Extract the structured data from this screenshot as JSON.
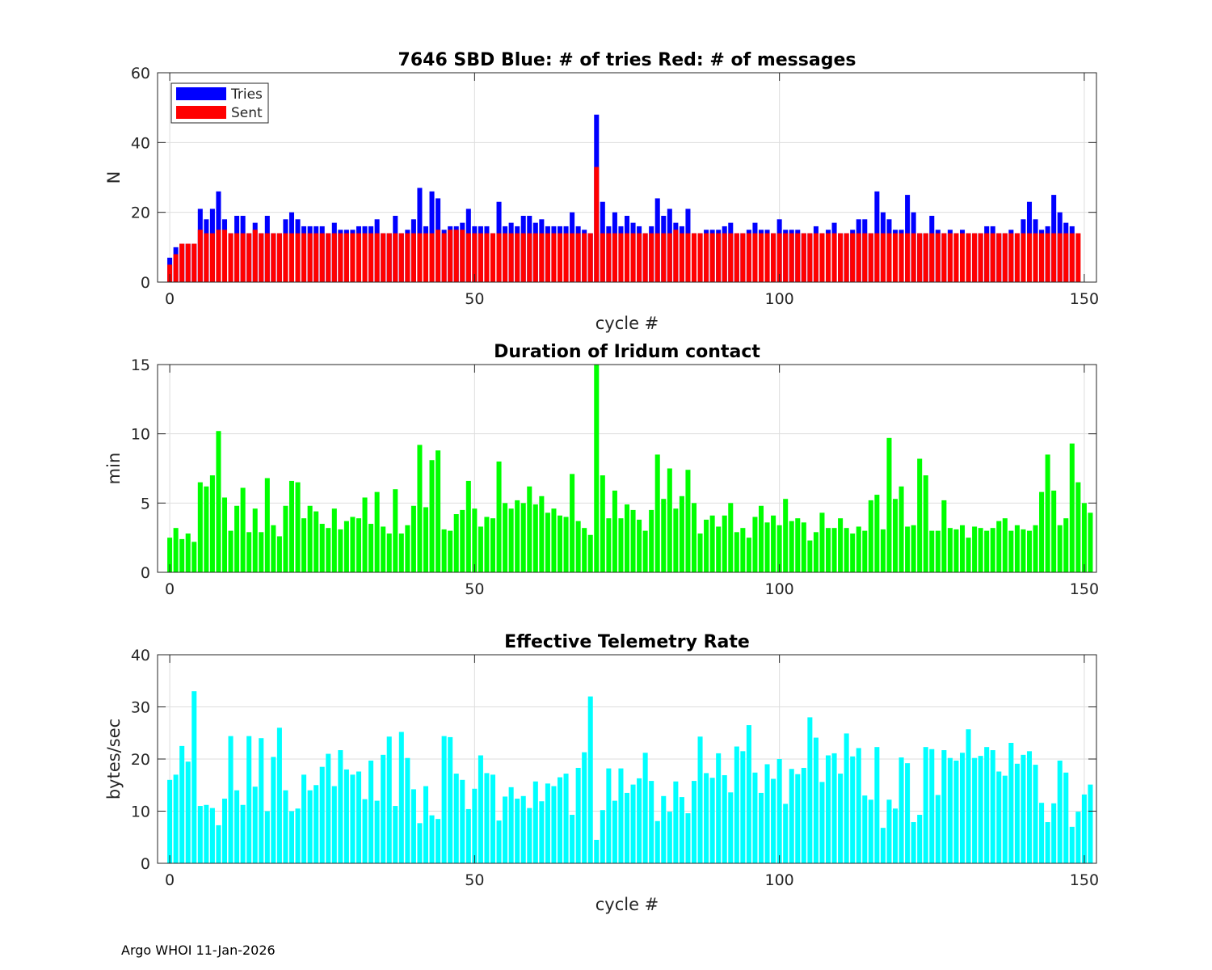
{
  "footer": "Argo WHOI 11-Jan-2026",
  "chart_data": [
    {
      "type": "bar",
      "title": "7646 SBD  Blue: # of tries   Red: # of messages",
      "xlabel": "cycle #",
      "ylabel": "N",
      "xlim": [
        -2,
        152
      ],
      "ylim": [
        0,
        60
      ],
      "xticks": [
        0,
        50,
        100,
        150
      ],
      "yticks": [
        0,
        20,
        40,
        60
      ],
      "grid": true,
      "legend": {
        "position": "top-left",
        "entries": [
          {
            "name": "Tries",
            "color": "#0000ff"
          },
          {
            "name": "Sent",
            "color": "#ff0000"
          }
        ]
      },
      "x_start": 0,
      "series": [
        {
          "name": "Tries",
          "color": "#0000ff",
          "values": [
            7,
            10,
            11,
            11,
            11,
            21,
            18,
            21,
            26,
            18,
            14,
            19,
            19,
            14,
            17,
            14,
            19,
            14,
            14,
            18,
            20,
            18,
            16,
            16,
            16,
            16,
            14,
            17,
            15,
            15,
            15,
            16,
            16,
            16,
            18,
            14,
            14,
            19,
            14,
            15,
            18,
            27,
            16,
            26,
            24,
            15,
            16,
            16,
            17,
            21,
            16,
            16,
            16,
            14,
            23,
            16,
            17,
            16,
            19,
            19,
            17,
            18,
            16,
            16,
            16,
            16,
            20,
            16,
            15,
            14,
            48,
            23,
            16,
            20,
            16,
            19,
            17,
            16,
            14,
            16,
            24,
            19,
            21,
            17,
            16,
            21,
            14,
            14,
            15,
            15,
            15,
            16,
            17,
            14,
            14,
            15,
            17,
            15,
            15,
            14,
            18,
            15,
            15,
            15,
            14,
            14,
            16,
            14,
            15,
            17,
            14,
            14,
            15,
            18,
            18,
            14,
            26,
            20,
            18,
            15,
            15,
            25,
            20,
            14,
            14,
            19,
            15,
            14,
            15,
            14,
            15,
            14,
            14,
            14,
            16,
            16,
            14,
            14,
            15,
            14,
            18,
            23,
            18,
            15,
            16,
            25,
            20,
            17,
            16
          ]
        },
        {
          "name": "Sent",
          "color": "#ff0000",
          "values": [
            5,
            8,
            11,
            11,
            11,
            15,
            14,
            14,
            15,
            15,
            14,
            14,
            14,
            14,
            15,
            14,
            14,
            14,
            14,
            14,
            14,
            14,
            14,
            14,
            14,
            14,
            14,
            14,
            14,
            14,
            14,
            14,
            14,
            14,
            14,
            14,
            14,
            14,
            14,
            14,
            14,
            14,
            14,
            14,
            15,
            14,
            15,
            15,
            15,
            14,
            14,
            14,
            14,
            14,
            14,
            14,
            14,
            14,
            14,
            14,
            14,
            14,
            14,
            14,
            14,
            14,
            14,
            14,
            14,
            14,
            33,
            14,
            14,
            14,
            14,
            14,
            14,
            14,
            14,
            14,
            14,
            14,
            14,
            15,
            14,
            14,
            14,
            14,
            14,
            14,
            14,
            14,
            14,
            14,
            14,
            14,
            14,
            14,
            14,
            14,
            14,
            14,
            14,
            14,
            14,
            14,
            14,
            14,
            14,
            14,
            14,
            14,
            14,
            14,
            14,
            14,
            14,
            14,
            14,
            14,
            14,
            14,
            14,
            14,
            14,
            14,
            14,
            14,
            14,
            14,
            14,
            14,
            14,
            14,
            14,
            14,
            14,
            14,
            14,
            14,
            14,
            14,
            14,
            14,
            14,
            14,
            14,
            14,
            14,
            14
          ]
        }
      ]
    },
    {
      "type": "bar",
      "title": "Duration of Iridum contact",
      "xlabel": "",
      "ylabel": "min",
      "xlim": [
        -2,
        152
      ],
      "ylim": [
        0,
        15
      ],
      "xticks": [
        0,
        50,
        100,
        150
      ],
      "yticks": [
        0,
        5,
        10,
        15
      ],
      "grid": true,
      "x_start": 0,
      "series": [
        {
          "name": "Duration",
          "color": "#00ff00",
          "values": [
            2.5,
            3.2,
            2.4,
            2.8,
            2.2,
            6.5,
            6.2,
            7.0,
            10.2,
            5.4,
            3.0,
            4.8,
            6.1,
            2.9,
            4.6,
            2.9,
            6.8,
            3.4,
            2.6,
            4.8,
            6.6,
            6.5,
            3.9,
            4.8,
            4.4,
            3.5,
            3.2,
            4.6,
            3.1,
            3.7,
            4.0,
            3.9,
            5.4,
            3.5,
            5.8,
            3.3,
            2.8,
            6.0,
            2.8,
            3.4,
            4.8,
            9.2,
            4.7,
            8.1,
            8.8,
            3.1,
            3.0,
            4.2,
            4.5,
            6.6,
            4.6,
            3.3,
            4.0,
            3.9,
            8.0,
            5.0,
            4.6,
            5.2,
            5.0,
            6.2,
            4.9,
            5.5,
            4.3,
            4.6,
            4.1,
            4.0,
            7.1,
            3.7,
            3.2,
            2.7,
            15.5,
            7.0,
            3.9,
            5.9,
            3.9,
            4.9,
            4.5,
            3.8,
            3.0,
            4.5,
            8.5,
            5.3,
            7.5,
            4.6,
            5.5,
            7.4,
            5.0,
            2.8,
            3.8,
            4.1,
            3.3,
            4.1,
            5.0,
            2.9,
            3.2,
            2.5,
            4.0,
            4.8,
            3.6,
            4.1,
            3.4,
            5.3,
            3.7,
            3.9,
            3.6,
            2.3,
            2.9,
            4.3,
            3.2,
            3.2,
            3.9,
            3.2,
            2.8,
            3.3,
            3.0,
            5.2,
            5.6,
            3.1,
            9.7,
            5.3,
            6.2,
            3.3,
            3.4,
            8.2,
            7.0,
            3.0,
            3.0,
            5.2,
            3.2,
            3.1,
            3.4,
            2.5,
            3.3,
            3.2,
            3.0,
            3.2,
            3.7,
            3.9,
            3.0,
            3.4,
            3.1,
            3.0,
            3.4,
            5.8,
            8.5,
            5.9,
            3.4,
            3.9,
            9.3,
            6.5,
            5.0,
            4.3
          ]
        }
      ]
    },
    {
      "type": "bar",
      "title": "Effective Telemetry Rate",
      "xlabel": "cycle #",
      "ylabel": "bytes/sec",
      "xlim": [
        -2,
        152
      ],
      "ylim": [
        0,
        40
      ],
      "xticks": [
        0,
        50,
        100,
        150
      ],
      "yticks": [
        0,
        10,
        20,
        30,
        40
      ],
      "grid": true,
      "x_start": 0,
      "series": [
        {
          "name": "Rate",
          "color": "#00ffff",
          "values": [
            16,
            17,
            22.5,
            19.5,
            33,
            11,
            11.2,
            10.6,
            7.3,
            12.4,
            24.4,
            14,
            11.2,
            24.4,
            14.7,
            24,
            10,
            20.4,
            26,
            14,
            10,
            10.5,
            17,
            14,
            15,
            18.5,
            21,
            14.8,
            21.7,
            18,
            17,
            17.6,
            12.3,
            19.7,
            12,
            20.8,
            24.3,
            11,
            25.2,
            20.2,
            14.2,
            7.7,
            14.8,
            9.2,
            8.5,
            24.4,
            24.2,
            17.2,
            16,
            10.4,
            14.3,
            20.7,
            17.3,
            17,
            8.2,
            12.8,
            14.6,
            12.4,
            12.9,
            10.6,
            15.7,
            11.9,
            15.3,
            14.8,
            16.5,
            17.2,
            9.3,
            18.3,
            21.3,
            32,
            4.5,
            10.2,
            18.2,
            12,
            18.2,
            13.5,
            15.1,
            16.3,
            21.2,
            15.8,
            8.1,
            12.9,
            9.9,
            15.7,
            12.7,
            9.6,
            15.8,
            24.3,
            17.3,
            16.4,
            21.1,
            16.9,
            13.6,
            22.4,
            21.5,
            26.5,
            17.4,
            13.5,
            19,
            16.2,
            20,
            11.4,
            18.1,
            17.1,
            18.3,
            28,
            24.1,
            15.6,
            20.7,
            21.1,
            17.2,
            24.9,
            20.5,
            22.1,
            13,
            12.2,
            22.3,
            6.8,
            12.2,
            10.5,
            20.3,
            19.2,
            7.9,
            9.3,
            22.3,
            21.9,
            13.1,
            21.7,
            20.2,
            19.7,
            21.2,
            25.7,
            20.2,
            20.6,
            22.3,
            21.7,
            17.6,
            16.8,
            23.1,
            19.1,
            20.8,
            21.5,
            18.9,
            11.6,
            7.9,
            11.5,
            19.7,
            17.4,
            7,
            9.9,
            13.2,
            15.1
          ]
        }
      ]
    }
  ]
}
